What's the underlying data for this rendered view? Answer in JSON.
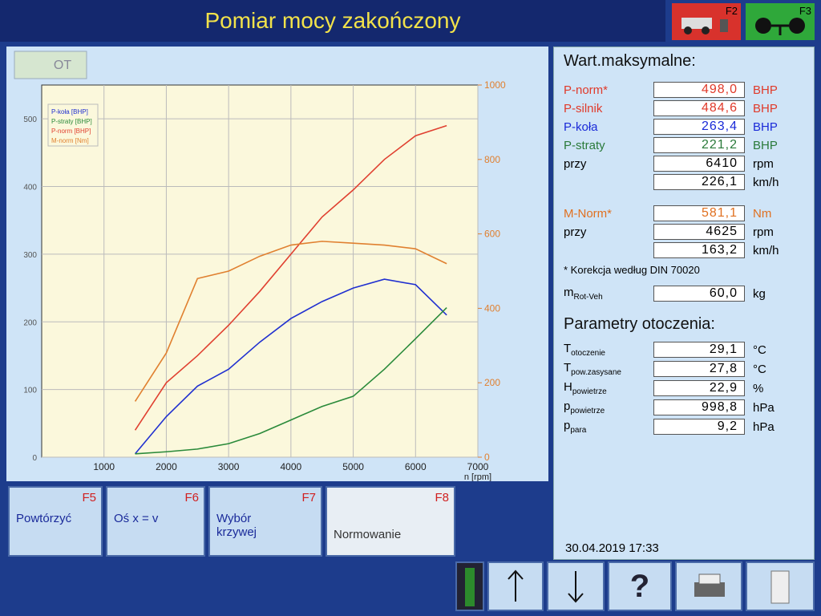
{
  "header": {
    "title": "Pomiar mocy zakończony",
    "ot": "OT",
    "f2": "F2",
    "f3": "F3"
  },
  "chart_data": {
    "type": "line",
    "x_label": "n [rpm]",
    "x": [
      1500,
      2000,
      2500,
      3000,
      3500,
      4000,
      4500,
      5000,
      5500,
      6000,
      6500
    ],
    "xlim": [
      0,
      7000
    ],
    "xticks": [
      1000,
      2000,
      3000,
      4000,
      5000,
      6000,
      7000
    ],
    "ylim": [
      0,
      550
    ],
    "yticks": [
      0,
      100,
      200,
      300,
      400,
      500
    ],
    "y2lim": [
      0,
      1000
    ],
    "y2ticks": [
      0,
      200,
      400,
      600,
      800,
      1000
    ],
    "grid": true,
    "legend": "top-left",
    "series": [
      {
        "name": "P-koła [BHP]",
        "color": "#2030d0",
        "values": [
          5,
          60,
          105,
          130,
          170,
          205,
          230,
          250,
          263,
          255,
          210
        ]
      },
      {
        "name": "P-straty [BHP]",
        "color": "#2a8a3a",
        "values": [
          5,
          8,
          12,
          20,
          35,
          55,
          75,
          90,
          130,
          175,
          221
        ]
      },
      {
        "name": "P-norm [BHP]",
        "color": "#e04030",
        "values": [
          40,
          110,
          150,
          195,
          245,
          300,
          355,
          395,
          440,
          475,
          490
        ]
      },
      {
        "name": "M-norm [Nm]",
        "color": "#e08030",
        "axis": "y2",
        "values": [
          150,
          280,
          480,
          500,
          540,
          570,
          580,
          575,
          570,
          560,
          520
        ]
      }
    ]
  },
  "max_values": {
    "title": "Wart.maksymalne:",
    "rows": [
      {
        "label": "P-norm*",
        "value": "498,0",
        "unit": "BHP",
        "color": "#e03a2a"
      },
      {
        "label": "P-silnik",
        "value": "484,6",
        "unit": "BHP",
        "color": "#e03a2a"
      },
      {
        "label": "P-koła",
        "value": "263,4",
        "unit": "BHP",
        "color": "#1a2ad8"
      },
      {
        "label": "P-straty",
        "value": "221,2",
        "unit": "BHP",
        "color": "#2a7a3a"
      },
      {
        "label": "przy",
        "value": "6410",
        "unit": "rpm"
      },
      {
        "value": "226,1",
        "unit": "km/h"
      },
      {
        "label": "M-Norm*",
        "value": "581,1",
        "unit": "Nm",
        "color": "#e07020"
      },
      {
        "label": "przy",
        "value": "4625",
        "unit": "rpm"
      },
      {
        "value": "163,2",
        "unit": "km/h"
      }
    ],
    "note": "* Korekcja według DIN 70020",
    "mass": {
      "label": "m",
      "sub": "Rot-Veh",
      "value": "60,0",
      "unit": "kg"
    }
  },
  "ambient": {
    "title": "Parametry otoczenia:",
    "rows": [
      {
        "label": "T",
        "sub": "otoczenie",
        "value": "29,1",
        "unit": "°C"
      },
      {
        "label": "T",
        "sub": "pow.zasysane",
        "value": "27,8",
        "unit": "°C"
      },
      {
        "label": "H",
        "sub": "powietrze",
        "value": "22,9",
        "unit": "%"
      },
      {
        "label": "p",
        "sub": "powietrze",
        "value": "998,8",
        "unit": "hPa"
      },
      {
        "label": "p",
        "sub": "para",
        "value": "9,2",
        "unit": "hPa"
      }
    ]
  },
  "datetime": "30.04.2019 17:33",
  "buttons": [
    {
      "label": "Powtórzyć",
      "key": "F5"
    },
    {
      "label": "Oś x = v",
      "key": "F6"
    },
    {
      "label": "Wybór krzywej",
      "key": "F7"
    },
    {
      "label": "Normowanie",
      "key": "F8"
    }
  ],
  "help": "?"
}
